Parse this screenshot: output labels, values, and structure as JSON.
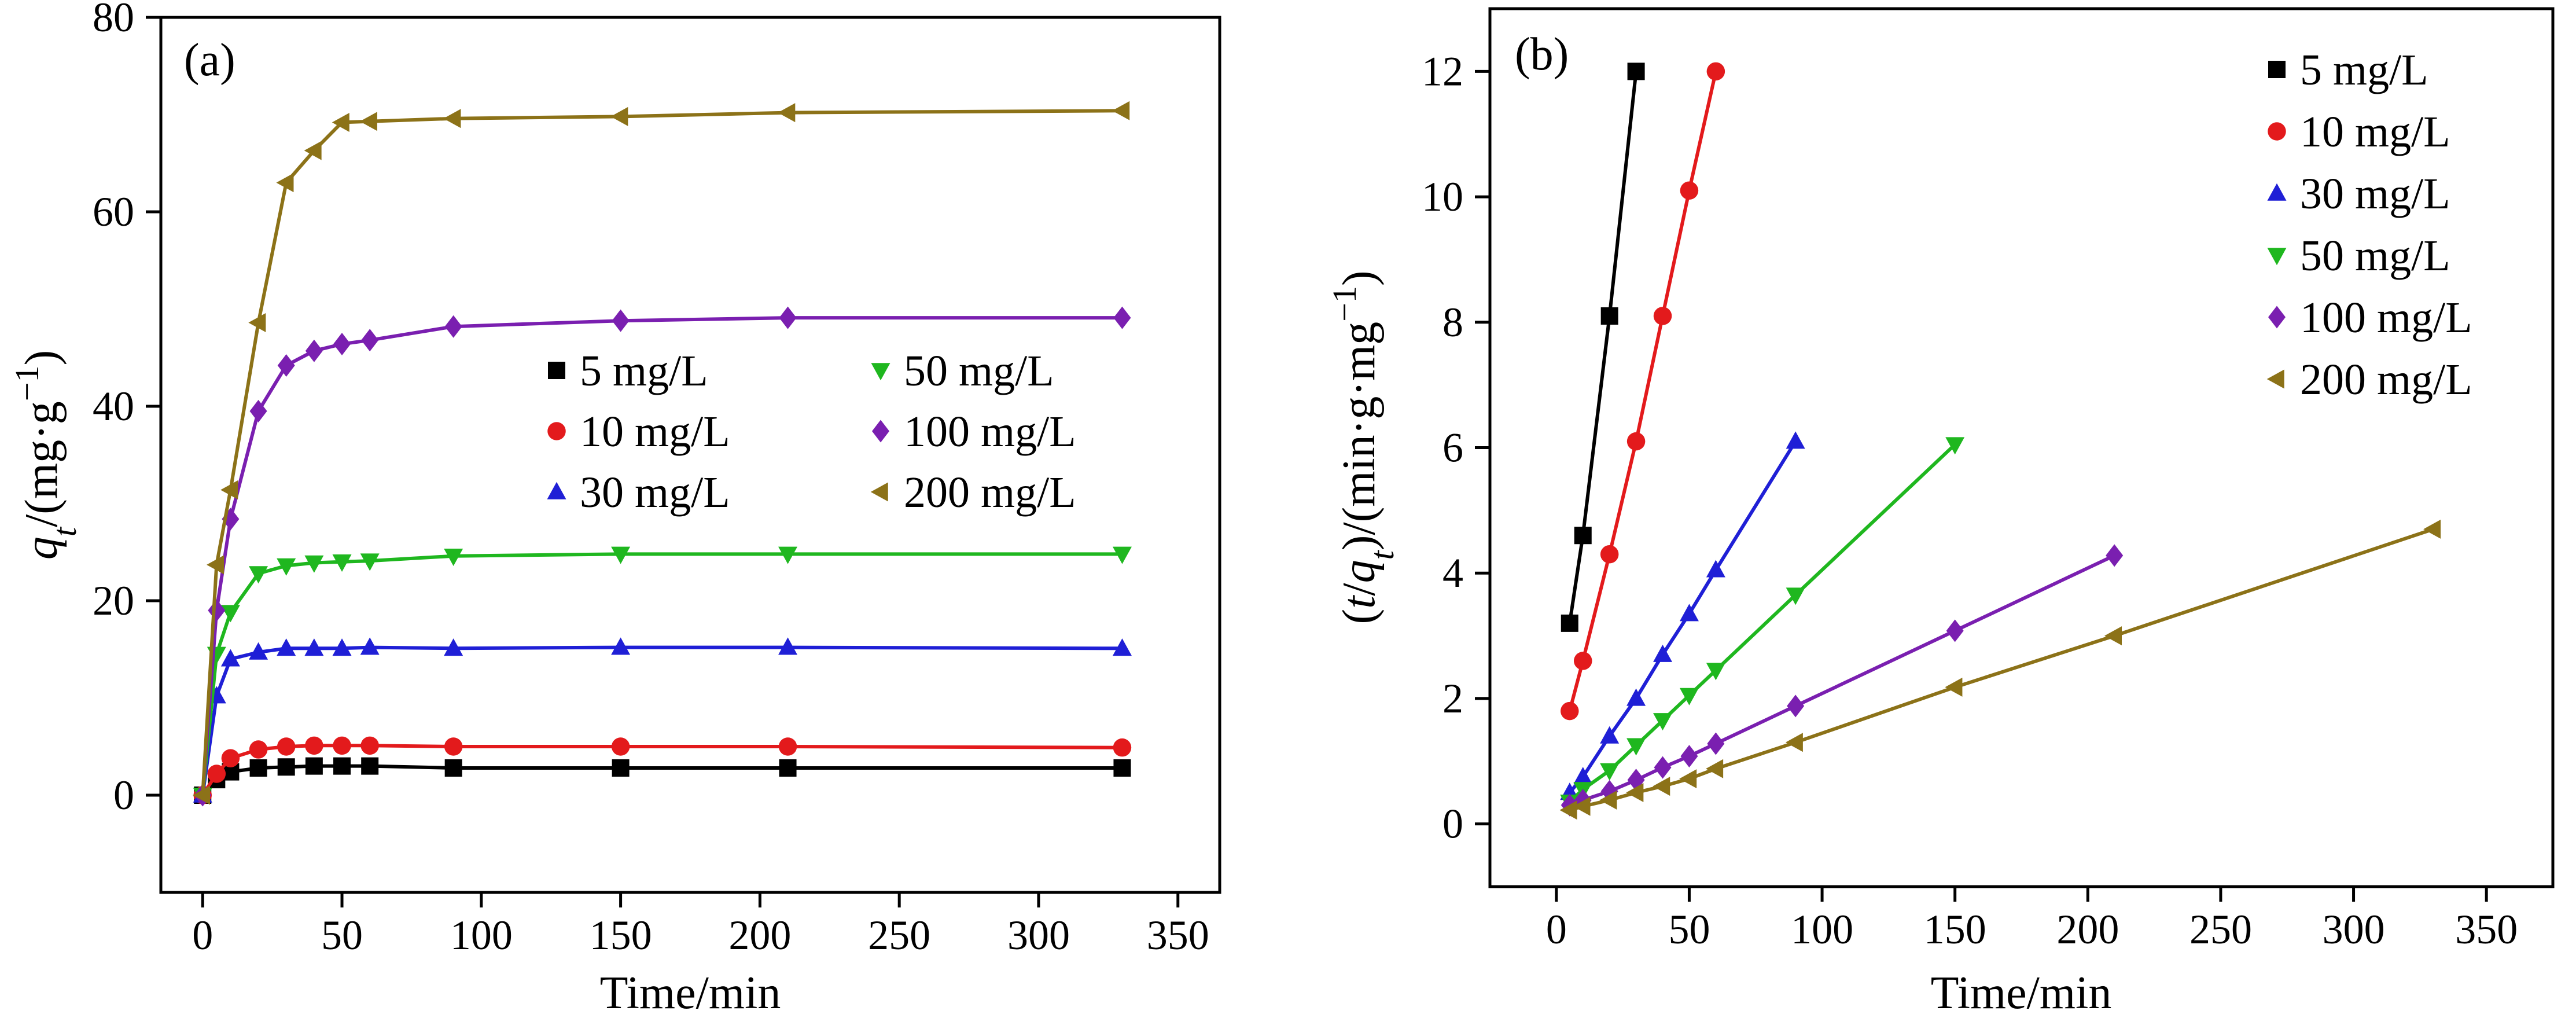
{
  "figure": {
    "panel_tags": [
      "(a)",
      "(b)"
    ]
  },
  "colors": {
    "5 mg/L": "#000000",
    "10 mg/L": "#e31a1c",
    "30 mg/L": "#1f1fd6",
    "50 mg/L": "#1fb71f",
    "100 mg/L": "#7a1fb0",
    "200 mg/L": "#8c7218"
  },
  "chart_data": [
    {
      "panel": "(a)",
      "type": "line",
      "xlabel": "Time/min",
      "ylabel": "q_t/(mg·g⁻¹)",
      "xlim": [
        -15,
        365
      ],
      "ylim": [
        -10,
        80
      ],
      "xticks": [
        0,
        50,
        100,
        150,
        200,
        250,
        300,
        350
      ],
      "yticks": [
        0,
        20,
        40,
        60,
        80
      ],
      "legend": {
        "placement": "center-right",
        "columns": 2
      },
      "series": [
        {
          "name": "5 mg/L",
          "marker": "square",
          "x": [
            0,
            5,
            10,
            20,
            30,
            40,
            50,
            60,
            90,
            150,
            210,
            330
          ],
          "y": [
            0,
            1.6,
            2.4,
            2.8,
            2.9,
            3.0,
            3.0,
            3.0,
            2.8,
            2.8,
            2.8,
            2.8
          ]
        },
        {
          "name": "10 mg/L",
          "marker": "circle",
          "x": [
            0,
            5,
            10,
            20,
            30,
            40,
            50,
            60,
            90,
            150,
            210,
            330
          ],
          "y": [
            0,
            2.2,
            3.8,
            4.7,
            5.0,
            5.1,
            5.1,
            5.1,
            5.0,
            5.0,
            5.0,
            4.9
          ]
        },
        {
          "name": "30 mg/L",
          "marker": "triangle-up",
          "x": [
            0,
            5,
            10,
            20,
            30,
            40,
            50,
            60,
            90,
            150,
            210,
            330
          ],
          "y": [
            0,
            10.2,
            14.0,
            14.7,
            15.1,
            15.1,
            15.1,
            15.2,
            15.1,
            15.2,
            15.2,
            15.1
          ]
        },
        {
          "name": "50 mg/L",
          "marker": "triangle-down",
          "x": [
            0,
            5,
            10,
            20,
            30,
            40,
            50,
            60,
            90,
            150,
            210,
            330
          ],
          "y": [
            0,
            14.5,
            18.8,
            22.8,
            23.6,
            23.9,
            24.0,
            24.1,
            24.6,
            24.8,
            24.8,
            24.8
          ]
        },
        {
          "name": "100 mg/L",
          "marker": "diamond",
          "x": [
            0,
            5,
            10,
            20,
            30,
            40,
            50,
            60,
            90,
            150,
            210,
            330
          ],
          "y": [
            0,
            19.0,
            28.4,
            39.5,
            44.2,
            45.7,
            46.4,
            46.8,
            48.2,
            48.8,
            49.1,
            49.1
          ]
        },
        {
          "name": "200 mg/L",
          "marker": "triangle-left",
          "x": [
            0,
            5,
            10,
            20,
            30,
            40,
            50,
            60,
            90,
            150,
            210,
            330
          ],
          "y": [
            0,
            23.7,
            31.4,
            48.6,
            63.0,
            66.3,
            69.2,
            69.3,
            69.6,
            69.8,
            70.2,
            70.4
          ]
        }
      ]
    },
    {
      "panel": "(b)",
      "type": "line",
      "xlabel": "Time/min",
      "ylabel": "(t/q_t)/(min·g·mg⁻¹)",
      "xlim": [
        -25,
        375
      ],
      "ylim": [
        -1,
        13
      ],
      "xticks": [
        0,
        50,
        100,
        150,
        200,
        250,
        300,
        350
      ],
      "yticks": [
        0,
        2,
        4,
        6,
        8,
        10,
        12
      ],
      "legend": {
        "placement": "top-right",
        "columns": 1
      },
      "series": [
        {
          "name": "5 mg/L",
          "marker": "square",
          "x": [
            5,
            10,
            20,
            30
          ],
          "y": [
            3.2,
            4.6,
            8.1,
            12.0
          ]
        },
        {
          "name": "10 mg/L",
          "marker": "circle",
          "x": [
            5,
            10,
            20,
            30,
            40,
            50,
            60
          ],
          "y": [
            1.8,
            2.6,
            4.3,
            6.1,
            8.1,
            10.1,
            12.0
          ]
        },
        {
          "name": "30 mg/L",
          "marker": "triangle-up",
          "x": [
            5,
            10,
            20,
            30,
            40,
            50,
            60,
            90
          ],
          "y": [
            0.5,
            0.75,
            1.4,
            2.0,
            2.7,
            3.35,
            4.05,
            6.1
          ]
        },
        {
          "name": "50 mg/L",
          "marker": "triangle-down",
          "x": [
            5,
            10,
            20,
            30,
            40,
            50,
            60,
            90,
            150
          ],
          "y": [
            0.35,
            0.55,
            0.85,
            1.25,
            1.65,
            2.05,
            2.45,
            3.65,
            6.05
          ]
        },
        {
          "name": "100 mg/L",
          "marker": "diamond",
          "x": [
            5,
            10,
            20,
            30,
            40,
            50,
            60,
            90,
            150,
            210
          ],
          "y": [
            0.3,
            0.38,
            0.52,
            0.7,
            0.9,
            1.08,
            1.28,
            1.88,
            3.08,
            4.28
          ]
        },
        {
          "name": "200 mg/L",
          "marker": "triangle-left",
          "x": [
            5,
            10,
            20,
            30,
            40,
            50,
            60,
            90,
            150,
            210,
            330
          ],
          "y": [
            0.22,
            0.28,
            0.38,
            0.5,
            0.6,
            0.72,
            0.88,
            1.3,
            2.18,
            3.0,
            4.7
          ]
        }
      ]
    }
  ]
}
